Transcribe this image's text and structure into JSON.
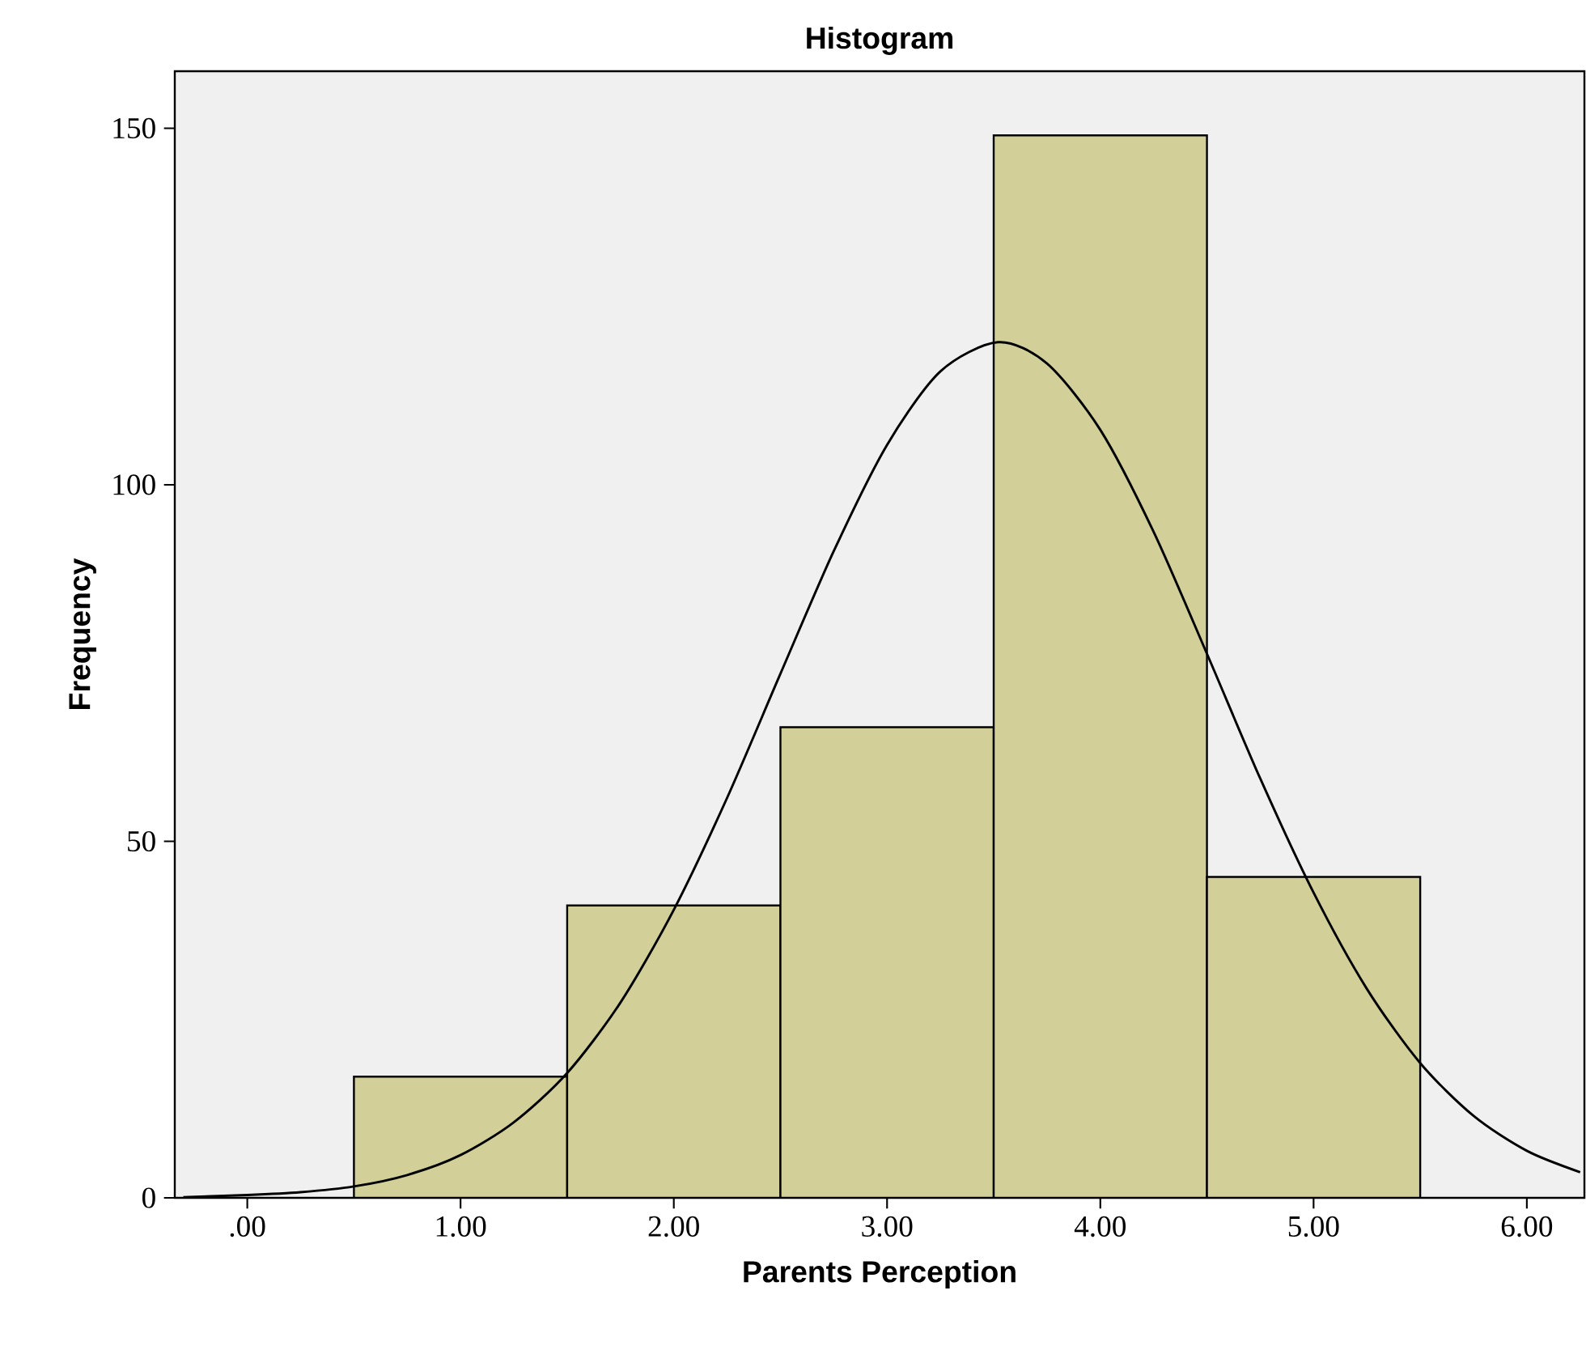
{
  "chart_data": {
    "type": "histogram",
    "title": "Histogram",
    "xlabel": "Parents Perception",
    "ylabel": "Frequency",
    "bins": [
      0.5,
      1.5,
      2.5,
      3.5,
      4.5,
      5.5
    ],
    "series": [
      {
        "color": "#d3cf98",
        "values": [
          17,
          41,
          66,
          149,
          45
        ]
      },
      {
        "type": "line",
        "color": "#000000",
        "x": [
          -0.3,
          0,
          0.25,
          0.5,
          0.75,
          1.0,
          1.25,
          1.5,
          1.75,
          2.0,
          2.25,
          2.5,
          2.75,
          3.0,
          3.25,
          3.52,
          3.75,
          4.0,
          4.25,
          4.5,
          4.75,
          5.0,
          5.25,
          5.5,
          5.75,
          6.0,
          6.25
        ],
        "values": [
          0.1,
          0.4,
          0.8,
          1.6,
          3.2,
          6.0,
          10.6,
          17.5,
          27.4,
          40.4,
          56.1,
          73.5,
          90.7,
          105.6,
          115.9,
          120,
          117.0,
          107.7,
          93.4,
          76.3,
          58.8,
          42.8,
          29.3,
          18.9,
          11.5,
          6.6,
          3.6
        ]
      }
    ],
    "xlim": [
      -0.34,
      6.27
    ],
    "ylim": [
      0,
      158
    ],
    "xticks": [
      {
        "value": 0,
        "label": ".00"
      },
      {
        "value": 1,
        "label": "1.00"
      },
      {
        "value": 2,
        "label": "2.00"
      },
      {
        "value": 3,
        "label": "3.00"
      },
      {
        "value": 4,
        "label": "4.00"
      },
      {
        "value": 5,
        "label": "5.00"
      },
      {
        "value": 6,
        "label": "6.00"
      }
    ],
    "yticks": [
      0,
      50,
      100,
      150
    ],
    "grid": false
  }
}
